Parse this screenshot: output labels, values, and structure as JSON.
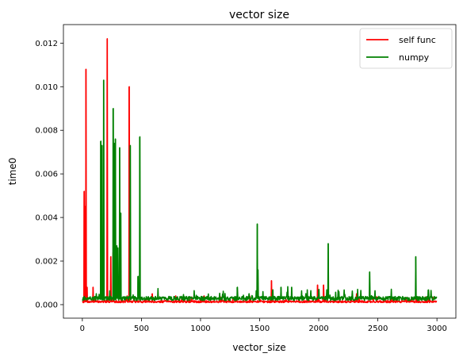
{
  "chart_data": {
    "type": "line",
    "title": "vector size",
    "xlabel": "vector_size",
    "ylabel": "time0",
    "xlim": [
      -160,
      3160
    ],
    "ylim": [
      -0.00062,
      0.01285
    ],
    "xticks": [
      0,
      500,
      1000,
      1500,
      2000,
      2500,
      3000
    ],
    "xtick_labels": [
      "0",
      "500",
      "1000",
      "1500",
      "2000",
      "2500",
      "3000"
    ],
    "yticks": [
      0.0,
      0.002,
      0.004,
      0.006,
      0.008,
      0.01,
      0.012
    ],
    "ytick_labels": [
      "0.000",
      "0.002",
      "0.004",
      "0.006",
      "0.008",
      "0.010",
      "0.012"
    ],
    "grid": false,
    "legend_position": "top-right",
    "x_range": [
      1,
      3000
    ],
    "series": [
      {
        "name": "self func",
        "color": "#ff0000",
        "baseline": 0.00013,
        "spikes": [
          {
            "x": 15,
            "y": 0.0052
          },
          {
            "x": 20,
            "y": 0.0045
          },
          {
            "x": 30,
            "y": 0.0108
          },
          {
            "x": 40,
            "y": 0.0008
          },
          {
            "x": 90,
            "y": 0.0008
          },
          {
            "x": 210,
            "y": 0.0122
          },
          {
            "x": 240,
            "y": 0.0022
          },
          {
            "x": 260,
            "y": 0.0024
          },
          {
            "x": 395,
            "y": 0.01
          },
          {
            "x": 590,
            "y": 0.0005
          },
          {
            "x": 790,
            "y": 0.0004
          },
          {
            "x": 1030,
            "y": 0.0004
          },
          {
            "x": 1600,
            "y": 0.0011
          },
          {
            "x": 1990,
            "y": 0.0009
          },
          {
            "x": 2040,
            "y": 0.0009
          },
          {
            "x": 2320,
            "y": 0.0005
          }
        ]
      },
      {
        "name": "numpy",
        "color": "#008000",
        "baseline": 0.00027,
        "spikes": [
          {
            "x": 155,
            "y": 0.0075
          },
          {
            "x": 165,
            "y": 0.0073
          },
          {
            "x": 180,
            "y": 0.0103
          },
          {
            "x": 260,
            "y": 0.009
          },
          {
            "x": 270,
            "y": 0.0074
          },
          {
            "x": 280,
            "y": 0.0076
          },
          {
            "x": 290,
            "y": 0.0027
          },
          {
            "x": 300,
            "y": 0.0026
          },
          {
            "x": 315,
            "y": 0.0072
          },
          {
            "x": 325,
            "y": 0.0042
          },
          {
            "x": 405,
            "y": 0.0073
          },
          {
            "x": 470,
            "y": 0.0013
          },
          {
            "x": 485,
            "y": 0.0077
          },
          {
            "x": 1310,
            "y": 0.0008
          },
          {
            "x": 1410,
            "y": 0.0005
          },
          {
            "x": 1480,
            "y": 0.0037
          },
          {
            "x": 1485,
            "y": 0.0016
          },
          {
            "x": 1680,
            "y": 0.0008
          },
          {
            "x": 1770,
            "y": 0.0008
          },
          {
            "x": 1860,
            "y": 0.0004
          },
          {
            "x": 2000,
            "y": 0.0007
          },
          {
            "x": 2080,
            "y": 0.0028
          },
          {
            "x": 2170,
            "y": 0.0006
          },
          {
            "x": 2430,
            "y": 0.0015
          },
          {
            "x": 2820,
            "y": 0.0022
          }
        ]
      }
    ]
  }
}
